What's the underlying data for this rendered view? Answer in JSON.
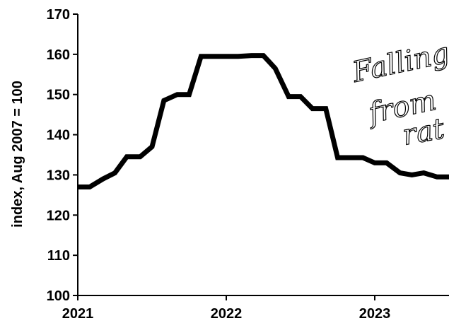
{
  "chart_data": {
    "type": "line",
    "title": "",
    "xlabel": "",
    "ylabel": "index, Aug 2007 = 100",
    "xlim": [
      2021.0,
      2023.5
    ],
    "ylim": [
      100,
      170
    ],
    "x_ticks": [
      {
        "value": 2021,
        "label": "2021"
      },
      {
        "value": 2022,
        "label": "2022"
      },
      {
        "value": 2023,
        "label": "2023"
      }
    ],
    "y_ticks": [
      {
        "value": 100,
        "label": "100"
      },
      {
        "value": 110,
        "label": "110"
      },
      {
        "value": 120,
        "label": "120"
      },
      {
        "value": 130,
        "label": "130"
      },
      {
        "value": 140,
        "label": "140"
      },
      {
        "value": 150,
        "label": "150"
      },
      {
        "value": 160,
        "label": "160"
      },
      {
        "value": 170,
        "label": "170"
      }
    ],
    "grid": false,
    "series": [
      {
        "color": "#000000",
        "x": [
          2021.0,
          2021.08,
          2021.17,
          2021.25,
          2021.33,
          2021.42,
          2021.5,
          2021.58,
          2021.67,
          2021.75,
          2021.83,
          2021.92,
          2022.0,
          2022.08,
          2022.17,
          2022.25,
          2022.33,
          2022.42,
          2022.5,
          2022.58,
          2022.67,
          2022.75,
          2022.83,
          2022.92,
          2023.0,
          2023.08,
          2023.17,
          2023.25,
          2023.33,
          2023.42,
          2023.5
        ],
        "y": [
          127,
          127,
          129,
          130.5,
          134.5,
          134.5,
          137,
          148.5,
          150,
          150,
          159.5,
          159.5,
          159.5,
          159.5,
          159.7,
          159.7,
          156.5,
          149.5,
          149.5,
          146.5,
          146.5,
          134.3,
          134.3,
          134.3,
          133,
          133,
          130.5,
          130,
          130.5,
          129.5,
          129.5
        ]
      }
    ],
    "annotations": [
      {
        "text": "Falling"
      },
      {
        "text": "from"
      },
      {
        "text": "rat"
      }
    ]
  }
}
